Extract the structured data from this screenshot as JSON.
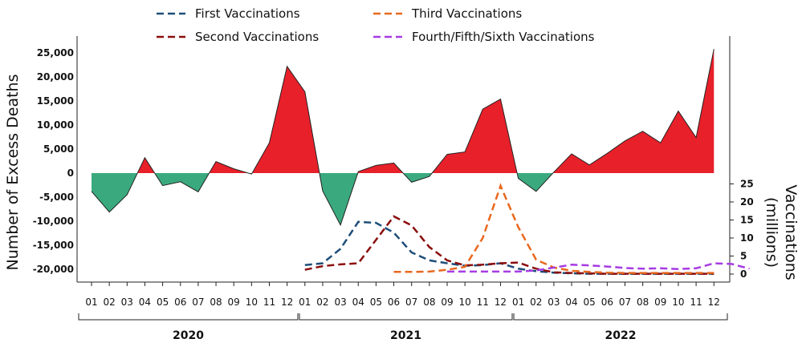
{
  "chart_data": {
    "type": "area",
    "primary_axis": {
      "label": "Number of Excess Deaths",
      "ticks": [
        -20000,
        -15000,
        -10000,
        -5000,
        0,
        5000,
        10000,
        15000,
        20000,
        25000
      ],
      "tick_labels": [
        "-20,000",
        "-15,000",
        "-10,000",
        "-5,000",
        "0",
        "5,000",
        "10,000",
        "15,000",
        "20,000",
        "25,000"
      ],
      "ylim": [
        -22000,
        28000
      ]
    },
    "secondary_axis": {
      "label": "Vaccinations",
      "label_sub": "(millions)",
      "ticks": [
        0,
        5,
        10,
        15,
        20,
        25
      ],
      "tick_labels": [
        "0",
        "5",
        "10",
        "15",
        "20",
        "25"
      ]
    },
    "month_labels": [
      "01",
      "02",
      "03",
      "04",
      "05",
      "06",
      "07",
      "08",
      "09",
      "10",
      "11",
      "12",
      "01",
      "02",
      "03",
      "04",
      "05",
      "06",
      "07",
      "08",
      "09",
      "10",
      "11",
      "12",
      "01",
      "02",
      "03",
      "04",
      "05",
      "06",
      "07",
      "08",
      "09",
      "10",
      "11",
      "12"
    ],
    "years": [
      "2020",
      "2021",
      "2022"
    ],
    "excess_deaths": {
      "positive_color": "#e8202a",
      "negative_color": "#3aaa7e",
      "values": [
        -3800,
        -8100,
        -4500,
        3200,
        -2600,
        -1800,
        -3900,
        2400,
        900,
        -200,
        6300,
        22200,
        16900,
        -3700,
        -10800,
        300,
        1600,
        2100,
        -1900,
        -700,
        3900,
        4400,
        13300,
        15400,
        -1100,
        -3800,
        200,
        4000,
        1700,
        4100,
        6700,
        8700,
        6300,
        12900,
        7400,
        25800
      ]
    },
    "series": [
      {
        "name": "First Vaccinations",
        "color": "#1f4e79",
        "start_index": 12,
        "values": [
          2.5,
          3.0,
          7.0,
          14.5,
          14.2,
          11.5,
          6.0,
          3.8,
          3.0,
          2.3,
          2.5,
          3.0,
          1.5,
          0.8,
          0.4,
          0.2,
          0.1,
          0.1,
          0.1,
          0.1,
          0.1,
          0.1,
          0.1,
          0.1
        ]
      },
      {
        "name": "Second Vaccinations",
        "color": "#8b0d0d",
        "start_index": 12,
        "values": [
          1.2,
          2.2,
          2.7,
          3.0,
          9.5,
          16.0,
          13.5,
          7.5,
          3.8,
          2.4,
          2.6,
          3.0,
          3.2,
          1.5,
          0.5,
          0.3,
          0.2,
          0.1,
          0.1,
          0.1,
          0.1,
          0.1,
          0.1,
          0.1
        ]
      },
      {
        "name": "Third Vaccinations",
        "color": "#e8681f",
        "start_index": 17,
        "values": [
          0.6,
          0.6,
          0.7,
          1.2,
          2.0,
          10.0,
          24.5,
          13.0,
          4.0,
          1.8,
          0.9,
          0.6,
          0.4,
          0.3,
          0.3,
          0.3,
          0.3,
          0.3,
          0.3
        ]
      },
      {
        "name": "Fourth/Fifth/Sixth Vaccinations",
        "color": "#a73be3",
        "start_index": 20,
        "values": [
          0.7,
          0.7,
          0.7,
          0.7,
          0.7,
          1.0,
          1.8,
          2.6,
          2.4,
          2.1,
          1.7,
          1.5,
          1.6,
          1.4,
          1.6,
          3.0,
          2.8,
          1.5
        ]
      }
    ]
  }
}
